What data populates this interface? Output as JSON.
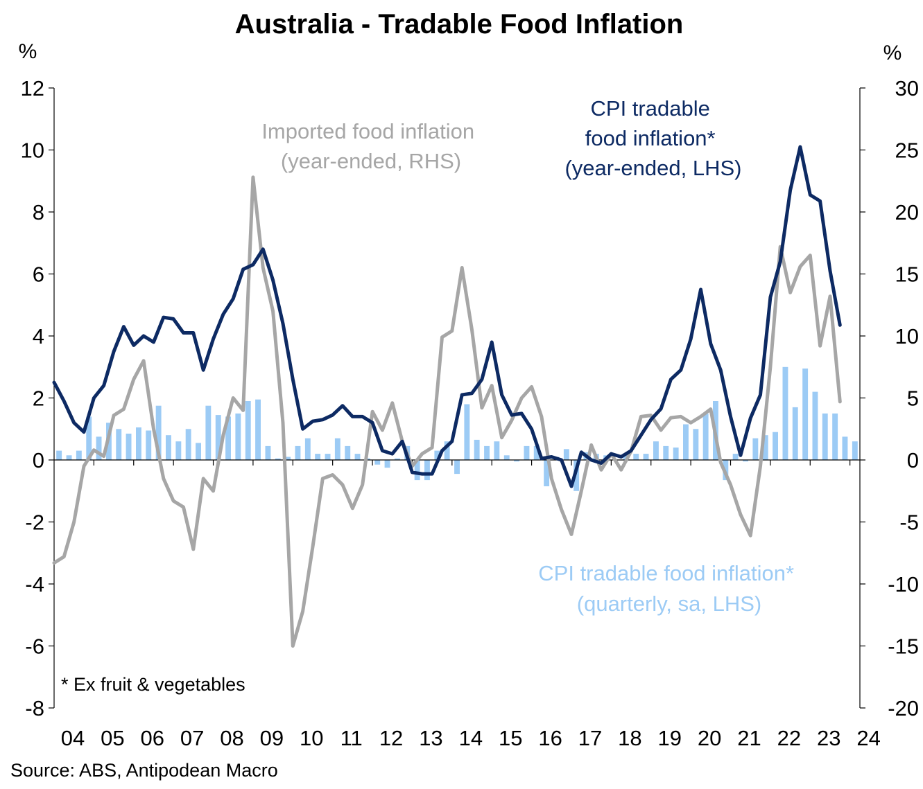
{
  "chart_data": {
    "type": "line",
    "title": "Australia  - Tradable Food Inflation",
    "left_unit": "%",
    "right_unit": "%",
    "left_axis": {
      "min": -8,
      "max": 12,
      "step": 2,
      "tick_labels": [
        "12",
        "10",
        "8",
        "6",
        "4",
        "2",
        "0",
        "-2",
        "-4",
        "-6",
        "-8"
      ]
    },
    "right_axis": {
      "min": -20,
      "max": 30,
      "step": 5,
      "tick_labels": [
        "30",
        "25",
        "20",
        "15",
        "10",
        "5",
        "0",
        "-5",
        "-10",
        "-15",
        "-20"
      ]
    },
    "x_tick_labels": [
      "04",
      "05",
      "06",
      "07",
      "08",
      "09",
      "10",
      "11",
      "12",
      "13",
      "14",
      "15",
      "16",
      "17",
      "18",
      "19",
      "20",
      "21",
      "22",
      "23",
      "24"
    ],
    "x_range": [
      2004.0,
      2024.25
    ],
    "series": [
      {
        "name": "CPI tradable food inflation* (quarterly, sa, LHS)",
        "kind": "bar",
        "axis": "left",
        "color": "#9ccbf5",
        "start": 2004.125,
        "values": [
          0.3,
          0.15,
          0.3,
          1.4,
          0.75,
          1.2,
          1.0,
          0.85,
          1.05,
          0.95,
          1.75,
          0.8,
          0.6,
          1.0,
          0.55,
          1.75,
          1.45,
          1.4,
          1.5,
          1.9,
          1.95,
          0.45,
          0.05,
          0.1,
          0.45,
          0.7,
          0.2,
          0.2,
          0.7,
          0.45,
          0.2,
          0.05,
          -0.15,
          -0.25,
          0.05,
          0.45,
          -0.65,
          -0.65,
          0.3,
          0.6,
          -0.45,
          1.8,
          0.65,
          0.45,
          0.6,
          0.15,
          -0.05,
          0.45,
          0.45,
          -0.85,
          0.1,
          0.35,
          -1.0,
          0.25,
          0.2,
          0.15,
          0.0,
          0.15,
          0.2,
          0.2,
          0.6,
          0.45,
          0.4,
          1.15,
          1.0,
          1.5,
          1.9,
          -0.65,
          0.2,
          -0.05,
          0.7,
          0.8,
          0.9,
          3.0,
          1.7,
          2.95,
          2.2,
          1.5,
          1.5,
          0.75,
          0.6
        ]
      },
      {
        "name": "CPI tradable food inflation* (year-ended, LHS)",
        "kind": "line",
        "axis": "left",
        "color": "#0d2a63",
        "start": 2004.0,
        "values": [
          2.5,
          1.9,
          1.2,
          0.9,
          2.0,
          2.4,
          3.5,
          4.3,
          3.7,
          4.0,
          3.8,
          4.6,
          4.55,
          4.1,
          4.1,
          2.9,
          3.9,
          4.7,
          5.2,
          6.15,
          6.3,
          6.8,
          5.8,
          4.4,
          2.6,
          1.0,
          1.25,
          1.3,
          1.45,
          1.75,
          1.4,
          1.4,
          1.2,
          0.3,
          0.2,
          0.6,
          -0.4,
          -0.45,
          -0.45,
          0.3,
          0.6,
          2.1,
          2.15,
          2.6,
          3.8,
          2.1,
          1.45,
          1.5,
          1.0,
          0.05,
          0.1,
          0.0,
          -0.85,
          0.25,
          0.0,
          -0.1,
          0.2,
          0.1,
          0.3,
          0.8,
          1.3,
          1.65,
          2.6,
          2.9,
          3.9,
          5.5,
          3.75,
          2.9,
          1.4,
          0.15,
          1.35,
          2.1,
          5.25,
          6.4,
          8.7,
          10.1,
          8.55,
          8.35,
          6.1,
          4.35
        ]
      },
      {
        "name": "Imported food inflation (year-ended, RHS)",
        "kind": "line",
        "axis": "right",
        "color": "#a6a6a6",
        "start": 2004.0,
        "values": [
          -8.3,
          -7.8,
          -5.0,
          -0.5,
          0.8,
          0.3,
          3.6,
          4.1,
          6.5,
          8.0,
          2.5,
          -1.5,
          -3.3,
          -3.8,
          -7.2,
          -1.5,
          -2.5,
          2.0,
          5.0,
          4.0,
          22.8,
          15.5,
          12.0,
          3.0,
          -15.0,
          -12.2,
          -7.0,
          -1.5,
          -1.2,
          -2.0,
          -3.9,
          -2.0,
          3.9,
          2.4,
          4.6,
          1.5,
          -0.5,
          0.5,
          1.0,
          9.9,
          10.4,
          15.5,
          10.5,
          4.2,
          6.0,
          1.8,
          3.2,
          5.0,
          5.9,
          3.5,
          -1.5,
          -4.0,
          -6.0,
          -2.5,
          1.2,
          -0.8,
          0.5,
          -0.8,
          0.7,
          3.5,
          3.6,
          2.4,
          3.4,
          3.5,
          3.0,
          3.5,
          4.1,
          -0.2,
          -2.0,
          -4.4,
          -6.1,
          -0.5,
          7.5,
          17.2,
          13.5,
          15.6,
          16.5,
          9.2,
          13.2,
          4.7
        ]
      }
    ],
    "annotations": {
      "imported": [
        "Imported food inflation",
        "(year-ended, RHS)"
      ],
      "cpi_ye": [
        "CPI tradable",
        "food inflation*",
        "(year-ended, LHS)"
      ],
      "cpi_q": [
        "CPI tradable food inflation*",
        "(quarterly, sa, LHS)"
      ],
      "footnote": "* Ex fruit & vegetables"
    },
    "source": "Source: ABS, Antipodean Macro"
  }
}
